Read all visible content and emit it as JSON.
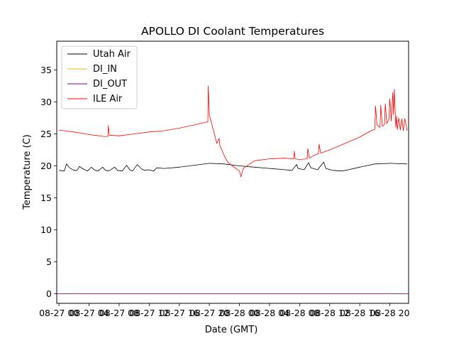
{
  "chart_data": {
    "type": "line",
    "title": "APOLLO DI Coolant Temperatures",
    "xlabel": "Date (GMT)",
    "ylabel": "Temperature (C)",
    "xlim_hours": [
      -0.3,
      46.5
    ],
    "ylim": [
      -1.5,
      39.5
    ],
    "yticks": [
      0,
      5,
      10,
      15,
      20,
      25,
      30,
      35
    ],
    "xticks": [
      {
        "label": "08-27 00",
        "hour": 0
      },
      {
        "label": "08-27 04",
        "hour": 4
      },
      {
        "label": "08-27 08",
        "hour": 8
      },
      {
        "label": "08-27 12",
        "hour": 12
      },
      {
        "label": "08-27 16",
        "hour": 16
      },
      {
        "label": "08-27 20",
        "hour": 20
      },
      {
        "label": "08-28 00",
        "hour": 24
      },
      {
        "label": "08-28 04",
        "hour": 28
      },
      {
        "label": "08-28 08",
        "hour": 32
      },
      {
        "label": "08-28 12",
        "hour": 36
      },
      {
        "label": "08-28 16",
        "hour": 40
      },
      {
        "label": "08-28 20",
        "hour": 44
      }
    ],
    "legend_position": "top-left",
    "series": [
      {
        "name": "Utah Air",
        "color": "#000000",
        "x": [
          0,
          0.7,
          1.0,
          1.4,
          2.0,
          2.4,
          2.7,
          3.4,
          3.8,
          4.3,
          4.8,
          5.2,
          5.8,
          6.2,
          6.6,
          7.4,
          7.8,
          8.4,
          9.0,
          9.4,
          9.8,
          10.4,
          11.0,
          11.4,
          11.8,
          12.6,
          13.0,
          14.0,
          16.0,
          18.0,
          20.0,
          22.0,
          24.0,
          26.0,
          28.0,
          30.0,
          31.0,
          31.6,
          31.8,
          32.6,
          33.2,
          33.5,
          34.4,
          35.2,
          35.5,
          36.4,
          37.6,
          38.5,
          40.0,
          42.0,
          44.0,
          46.3
        ],
        "y": [
          19.3,
          19.2,
          20.3,
          19.7,
          19.3,
          19.3,
          19.9,
          19.4,
          19.2,
          19.8,
          19.3,
          19.2,
          19.8,
          19.3,
          19.2,
          19.8,
          19.3,
          19.2,
          20.1,
          19.4,
          19.2,
          20.2,
          19.5,
          19.3,
          19.4,
          19.2,
          19.7,
          19.6,
          19.8,
          20.1,
          20.4,
          20.3,
          20.0,
          19.8,
          19.6,
          19.4,
          19.3,
          20.2,
          19.6,
          19.4,
          20.5,
          19.7,
          19.4,
          20.6,
          19.6,
          19.3,
          19.2,
          19.4,
          19.8,
          20.3,
          20.4,
          20.3
        ]
      },
      {
        "name": "DI_IN",
        "color": "#dcb428",
        "x": [
          -0.3,
          46.5
        ],
        "y": [
          0.0,
          0.0
        ]
      },
      {
        "name": "DI_OUT",
        "color": "#800080",
        "x": [
          -0.3,
          46.5
        ],
        "y": [
          0.0,
          0.0
        ]
      },
      {
        "name": "ILE Air",
        "color": "#ff0000",
        "x": [
          0,
          2.0,
          4.0,
          6.0,
          6.5,
          6.55,
          6.7,
          8.0,
          10.0,
          12.0,
          14.0,
          16.0,
          18.0,
          19.8,
          19.85,
          20.0,
          21.0,
          21.3,
          21.4,
          22.0,
          22.5,
          24.0,
          24.2,
          24.5,
          26.0,
          28.0,
          30.0,
          31.2,
          31.3,
          31.4,
          32.0,
          33.0,
          33.1,
          33.3,
          34.0,
          34.5,
          34.6,
          34.8,
          36.0,
          38.0,
          40.0,
          41.5,
          42.0,
          42.1,
          42.3,
          42.7,
          42.8,
          43.0,
          43.3,
          43.4,
          43.6,
          43.9,
          44.0,
          44.2,
          44.4,
          44.5,
          44.6,
          44.8,
          44.9,
          45.0,
          45.2,
          45.4,
          45.6,
          45.8,
          46.0,
          46.3
        ],
        "y": [
          25.6,
          25.3,
          24.9,
          24.6,
          24.6,
          26.3,
          24.8,
          24.7,
          25.0,
          25.3,
          25.5,
          25.9,
          26.4,
          26.9,
          32.5,
          28.0,
          23.5,
          24.3,
          23.2,
          21.5,
          20.5,
          19.2,
          18.3,
          19.6,
          20.8,
          21.1,
          21.2,
          21.1,
          22.3,
          21.1,
          21.0,
          21.1,
          22.7,
          21.2,
          21.7,
          21.9,
          23.4,
          22.0,
          22.5,
          23.5,
          24.5,
          25.5,
          25.7,
          29.4,
          26.4,
          26.0,
          29.5,
          26.2,
          26.5,
          29.7,
          26.6,
          27.4,
          30.5,
          27.0,
          31.5,
          28.0,
          32.0,
          26.0,
          27.8,
          25.7,
          27.5,
          25.6,
          27.4,
          25.5,
          27.4,
          25.5
        ]
      }
    ]
  }
}
